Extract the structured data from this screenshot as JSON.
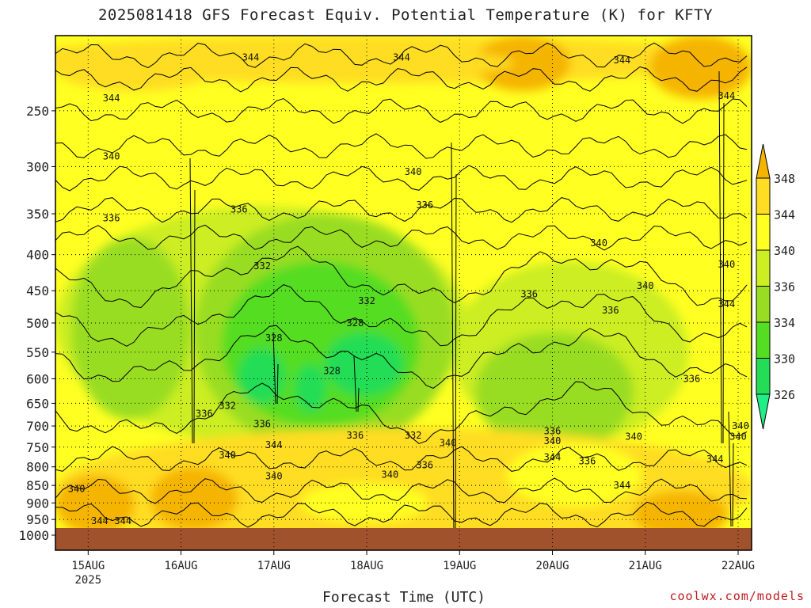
{
  "title": "2025081418 GFS Forecast Equiv. Potential Temperature (K) for KFTY",
  "xlabel": "Forecast Time (UTC)",
  "credit": "coolwx.com/models",
  "chart_data": {
    "type": "heatmap",
    "title": "2025081418 GFS Forecast Equiv. Potential Temperature (K) for KFTY",
    "xlabel": "Forecast Time (UTC)",
    "ylabel": "",
    "y_axis": {
      "scale": "pressure",
      "reversed": true,
      "range": [
        1000,
        200
      ],
      "ticks": [
        250,
        300,
        350,
        400,
        450,
        500,
        550,
        600,
        650,
        700,
        750,
        800,
        850,
        900,
        950,
        1000
      ]
    },
    "x_axis": {
      "range": [
        "2025-08-14 18Z",
        "2025-08-22 00Z"
      ],
      "ticks": [
        {
          "label": "15AUG",
          "sublabel": "2025",
          "time": "2025-08-15 00Z"
        },
        {
          "label": "16AUG",
          "sublabel": "",
          "time": "2025-08-16 00Z"
        },
        {
          "label": "17AUG",
          "sublabel": "",
          "time": "2025-08-17 00Z"
        },
        {
          "label": "18AUG",
          "sublabel": "",
          "time": "2025-08-18 00Z"
        },
        {
          "label": "19AUG",
          "sublabel": "",
          "time": "2025-08-19 00Z"
        },
        {
          "label": "20AUG",
          "sublabel": "",
          "time": "2025-08-20 00Z"
        },
        {
          "label": "21AUG",
          "sublabel": "",
          "time": "2025-08-21 00Z"
        },
        {
          "label": "22AUG",
          "sublabel": "",
          "time": "2025-08-22 00Z"
        }
      ]
    },
    "grid": true,
    "colorbar": {
      "placement": "right",
      "levels": [
        326,
        330,
        334,
        336,
        340,
        344,
        348
      ],
      "labels": [
        "326",
        "330",
        "334",
        "336",
        "340",
        "344",
        "348"
      ],
      "colors": [
        "#22dd55",
        "#55dd22",
        "#99dd22",
        "#ccee22",
        "#ffff22",
        "#ffdd22",
        "#f5b400"
      ]
    },
    "contour_labels": [
      {
        "text": "344",
        "time": "2025-08-15 06Z",
        "p": 240
      },
      {
        "text": "344",
        "time": "2025-08-16 18Z",
        "p": 210
      },
      {
        "text": "344",
        "time": "2025-08-18 09Z",
        "p": 210
      },
      {
        "text": "344",
        "time": "2025-08-20 18Z",
        "p": 212
      },
      {
        "text": "344",
        "time": "2025-08-21 21Z",
        "p": 238
      },
      {
        "text": "340",
        "time": "2025-08-15 06Z",
        "p": 290
      },
      {
        "text": "340",
        "time": "2025-08-18 12Z",
        "p": 305
      },
      {
        "text": "340",
        "time": "2025-08-20 12Z",
        "p": 385
      },
      {
        "text": "340",
        "time": "2025-08-21 00Z",
        "p": 443
      },
      {
        "text": "340",
        "time": "2025-08-21 21Z",
        "p": 413
      },
      {
        "text": "336",
        "time": "2025-08-15 06Z",
        "p": 355
      },
      {
        "text": "336",
        "time": "2025-08-16 15Z",
        "p": 345
      },
      {
        "text": "336",
        "time": "2025-08-18 15Z",
        "p": 340
      },
      {
        "text": "336",
        "time": "2025-08-19 18Z",
        "p": 455
      },
      {
        "text": "336",
        "time": "2025-08-20 15Z",
        "p": 480
      },
      {
        "text": "336",
        "time": "2025-08-21 12Z",
        "p": 600
      },
      {
        "text": "332",
        "time": "2025-08-16 21Z",
        "p": 415
      },
      {
        "text": "332",
        "time": "2025-08-18 00Z",
        "p": 465
      },
      {
        "text": "328",
        "time": "2025-08-17 00Z",
        "p": 525
      },
      {
        "text": "328",
        "time": "2025-08-17 21Z",
        "p": 500
      },
      {
        "text": "328",
        "time": "2025-08-17 15Z",
        "p": 585
      },
      {
        "text": "332",
        "time": "2025-08-16 12Z",
        "p": 655
      },
      {
        "text": "336",
        "time": "2025-08-16 06Z",
        "p": 672
      },
      {
        "text": "336",
        "time": "2025-08-16 21Z",
        "p": 695
      },
      {
        "text": "336",
        "time": "2025-08-17 21Z",
        "p": 722
      },
      {
        "text": "332",
        "time": "2025-08-18 12Z",
        "p": 722
      },
      {
        "text": "344",
        "time": "2025-08-17 00Z",
        "p": 745
      },
      {
        "text": "340",
        "time": "2025-08-16 12Z",
        "p": 770
      },
      {
        "text": "340",
        "time": "2025-08-17 00Z",
        "p": 825
      },
      {
        "text": "340",
        "time": "2025-08-18 06Z",
        "p": 820
      },
      {
        "text": "336",
        "time": "2025-08-18 15Z",
        "p": 795
      },
      {
        "text": "340",
        "time": "2025-08-18 21Z",
        "p": 740
      },
      {
        "text": "336",
        "time": "2025-08-20 00Z",
        "p": 712
      },
      {
        "text": "340",
        "time": "2025-08-20 00Z",
        "p": 735
      },
      {
        "text": "344",
        "time": "2025-08-20 00Z",
        "p": 775
      },
      {
        "text": "336",
        "time": "2025-08-20 09Z",
        "p": 785
      },
      {
        "text": "340",
        "time": "2025-08-20 21Z",
        "p": 725
      },
      {
        "text": "344",
        "time": "2025-08-20 18Z",
        "p": 850
      },
      {
        "text": "344",
        "time": "2025-08-21 18Z",
        "p": 780
      },
      {
        "text": "340",
        "time": "2025-08-22 00Z",
        "p": 725
      },
      {
        "text": "340",
        "time": "2025-08-22 03Z",
        "p": 700
      },
      {
        "text": "344",
        "time": "2025-08-21 21Z",
        "p": 470
      },
      {
        "text": "340",
        "time": "2025-08-14 21Z",
        "p": 860
      },
      {
        "text": "344",
        "time": "2025-08-15 03Z",
        "p": 955
      },
      {
        "text": "344",
        "time": "2025-08-15 09Z",
        "p": 955
      }
    ]
  }
}
